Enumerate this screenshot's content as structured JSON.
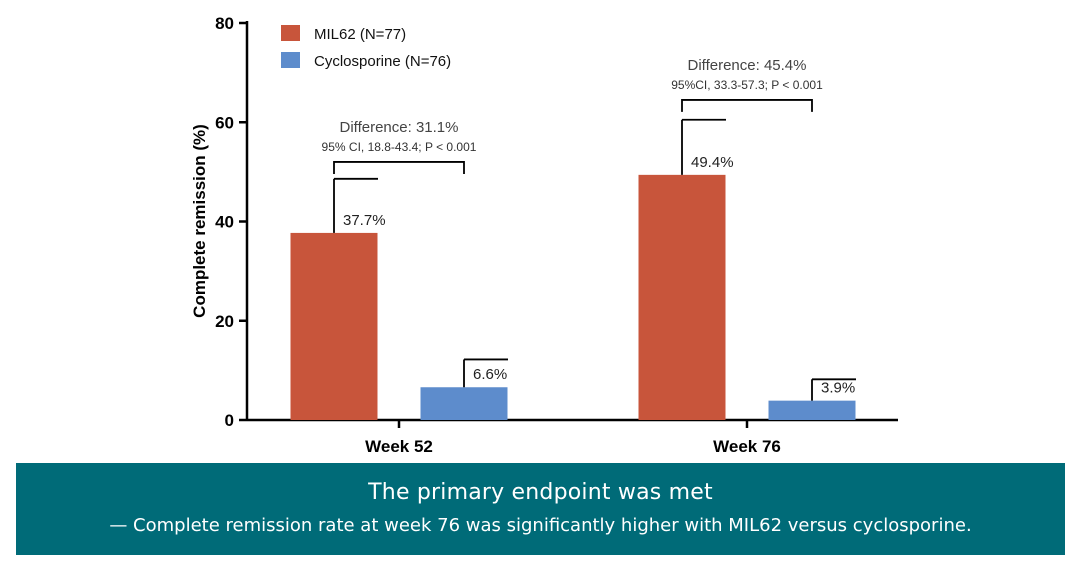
{
  "chart_data": {
    "type": "bar",
    "ylabel": "Complete remission (%)",
    "ylim": [
      0,
      80
    ],
    "yticks": [
      0,
      20,
      40,
      60,
      80
    ],
    "categories": [
      "Week 52",
      "Week 76"
    ],
    "series": [
      {
        "name": "MIL62 (N=77)",
        "color": "#c8553b",
        "values": [
          37.7,
          49.4
        ],
        "error_upper": [
          48.6,
          60.5
        ],
        "labels": [
          "37.7%",
          "49.4%"
        ]
      },
      {
        "name": "Cyclosporine (N=76)",
        "color": "#5d8ccc",
        "values": [
          6.6,
          3.9
        ],
        "error_upper": [
          12.2,
          8.2
        ],
        "labels": [
          "6.6%",
          "3.9%"
        ]
      }
    ],
    "annotations": [
      {
        "category_index": 0,
        "text": "Difference: 31.1%",
        "subtext": "95% CI, 18.8-43.4; P < 0.001",
        "bracket_level": 52
      },
      {
        "category_index": 1,
        "text": "Difference: 45.4%",
        "subtext": "95%CI, 33.3-57.3; P < 0.001",
        "bracket_level": 64.5
      }
    ]
  },
  "banner": {
    "title": "The primary endpoint was met",
    "subtitle": "— Complete remission rate at week 76 was significantly higher with MIL62 versus cyclosporine."
  }
}
